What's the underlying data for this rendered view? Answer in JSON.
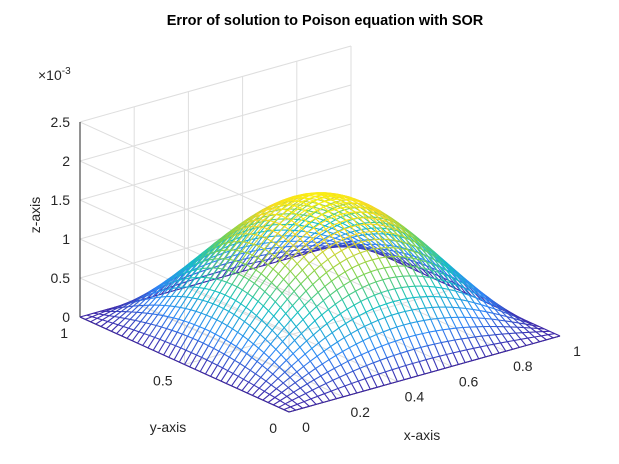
{
  "chart_data": {
    "type": "surface",
    "title": "Error of solution to Poison equation with SOR",
    "xlabel": "x-axis",
    "ylabel": "y-axis",
    "zlabel": "z-axis",
    "xlim": [
      0,
      1
    ],
    "ylim": [
      0,
      1
    ],
    "zlim": [
      0,
      0.0025
    ],
    "x_ticks": [
      "0",
      "0.2",
      "0.4",
      "0.6",
      "0.8",
      "1"
    ],
    "y_ticks": [
      "0",
      "0.5",
      "1"
    ],
    "z_ticks": [
      "0",
      "0.5",
      "1",
      "1.5",
      "2",
      "2.5"
    ],
    "z_exponent_base": "×10",
    "z_exponent_power": "-3",
    "grid": true,
    "colormap": "parula",
    "colors": [
      "#3e26a8",
      "#2e87f7",
      "#16c1c1",
      "#7fd34e",
      "#f5d626",
      "#fbf30e"
    ],
    "grid_n": 40,
    "peak_value": 0.00164,
    "formula": "z = 0.00164 * sin(pi*x) * sin(pi*y)"
  }
}
